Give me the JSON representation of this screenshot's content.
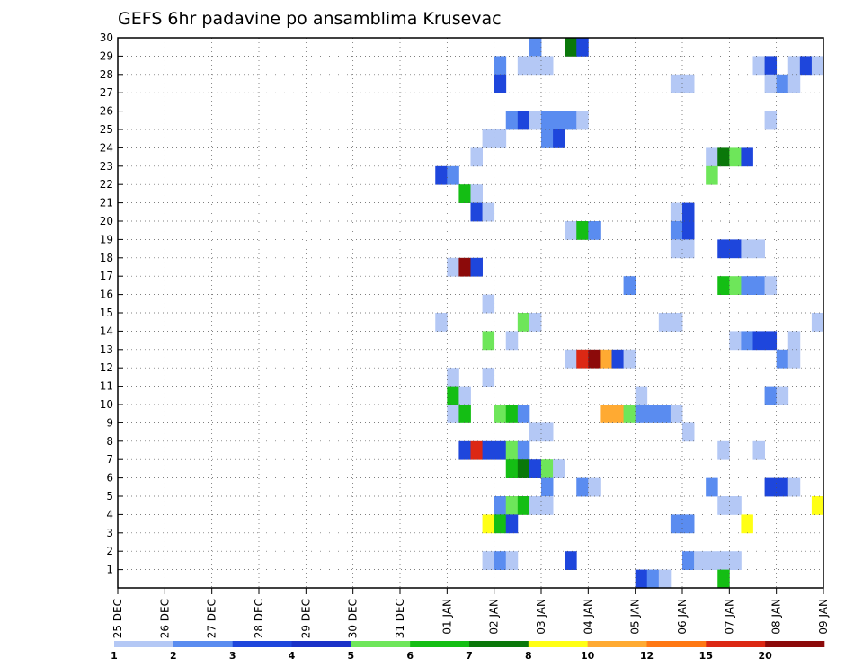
{
  "chart_data": {
    "type": "heatmap",
    "title": "GEFS 6hr padavine po ansamblima Krusevac",
    "xlabel": "",
    "ylabel": "",
    "x_ticks": [
      "25 DEC",
      "26 DEC",
      "27 DEC",
      "28 DEC",
      "29 DEC",
      "30 DEC",
      "31 DEC",
      "01 JAN",
      "02 JAN",
      "03 JAN",
      "04 JAN",
      "05 JAN",
      "06 JAN",
      "07 JAN",
      "08 JAN",
      "09 JAN"
    ],
    "x_range_days": [
      0,
      15
    ],
    "time_step_hours": 6,
    "y_ticks": [
      1,
      2,
      3,
      4,
      5,
      6,
      7,
      8,
      9,
      10,
      11,
      12,
      13,
      14,
      15,
      16,
      17,
      18,
      19,
      20,
      21,
      22,
      23,
      24,
      25,
      26,
      27,
      28,
      29,
      30
    ],
    "y_range": [
      0,
      30
    ],
    "grid": true,
    "legend": {
      "placement": "bottom",
      "labels": [
        "1",
        "2",
        "3",
        "4",
        "5",
        "6",
        "7",
        "8",
        "10",
        "12",
        "15",
        "20"
      ],
      "colors": [
        "#b4c8f5",
        "#5a8cf0",
        "#1e46dc",
        "#1a32c8",
        "#6ee65a",
        "#14be14",
        "#0a780a",
        "#ffff14",
        "#ffaa32",
        "#ff7814",
        "#dc2814",
        "#8c0a0a"
      ]
    },
    "cells": [
      {
        "m": 30,
        "c": [
          [
            35,
            2
          ],
          [
            38,
            7
          ],
          [
            39,
            3
          ]
        ]
      },
      {
        "m": 29,
        "c": [
          [
            32,
            2
          ],
          [
            34,
            1
          ],
          [
            35,
            1
          ],
          [
            36,
            1
          ],
          [
            54,
            1
          ],
          [
            55,
            3
          ],
          [
            57,
            1
          ],
          [
            58,
            3
          ],
          [
            59,
            1
          ]
        ]
      },
      {
        "m": 28,
        "c": [
          [
            32,
            3
          ],
          [
            47,
            1
          ],
          [
            48,
            1
          ],
          [
            55,
            1
          ],
          [
            56,
            2
          ],
          [
            57,
            1
          ]
        ]
      },
      {
        "m": 26,
        "c": [
          [
            33,
            2
          ],
          [
            34,
            3
          ],
          [
            35,
            1
          ],
          [
            36,
            2
          ],
          [
            37,
            2
          ],
          [
            38,
            2
          ],
          [
            39,
            1
          ],
          [
            55,
            1
          ]
        ]
      },
      {
        "m": 25,
        "c": [
          [
            31,
            1
          ],
          [
            32,
            1
          ],
          [
            36,
            2
          ],
          [
            37,
            3
          ]
        ]
      },
      {
        "m": 24,
        "c": [
          [
            30,
            1
          ],
          [
            50,
            1
          ],
          [
            51,
            7
          ],
          [
            52,
            5
          ],
          [
            53,
            3
          ]
        ]
      },
      {
        "m": 23,
        "c": [
          [
            27,
            3
          ],
          [
            28,
            2
          ],
          [
            50,
            5
          ]
        ]
      },
      {
        "m": 22,
        "c": [
          [
            29,
            6
          ],
          [
            30,
            1
          ]
        ]
      },
      {
        "m": 21,
        "c": [
          [
            30,
            3
          ],
          [
            31,
            1
          ],
          [
            47,
            1
          ],
          [
            48,
            3
          ]
        ]
      },
      {
        "m": 20,
        "c": [
          [
            38,
            1
          ],
          [
            39,
            6
          ],
          [
            40,
            2
          ],
          [
            47,
            2
          ],
          [
            48,
            3
          ]
        ]
      },
      {
        "m": 19,
        "c": [
          [
            47,
            1
          ],
          [
            48,
            1
          ],
          [
            51,
            3
          ],
          [
            52,
            3
          ],
          [
            53,
            1
          ],
          [
            54,
            1
          ]
        ]
      },
      {
        "m": 18,
        "c": [
          [
            28,
            1
          ],
          [
            29,
            20
          ],
          [
            30,
            3
          ]
        ]
      },
      {
        "m": 17,
        "c": [
          [
            43,
            2
          ],
          [
            51,
            6
          ],
          [
            52,
            5
          ],
          [
            53,
            2
          ],
          [
            54,
            2
          ],
          [
            55,
            1
          ]
        ]
      },
      {
        "m": 16,
        "c": [
          [
            31,
            1
          ]
        ]
      },
      {
        "m": 15,
        "c": [
          [
            27,
            1
          ],
          [
            34,
            5
          ],
          [
            35,
            1
          ],
          [
            46,
            1
          ],
          [
            47,
            1
          ],
          [
            59,
            1
          ]
        ]
      },
      {
        "m": 14,
        "c": [
          [
            31,
            5
          ],
          [
            33,
            1
          ],
          [
            52,
            1
          ],
          [
            53,
            2
          ],
          [
            54,
            3
          ],
          [
            55,
            3
          ],
          [
            57,
            1
          ]
        ]
      },
      {
        "m": 13,
        "c": [
          [
            38,
            1
          ],
          [
            39,
            15
          ],
          [
            40,
            20
          ],
          [
            41,
            10
          ],
          [
            42,
            3
          ],
          [
            43,
            1
          ],
          [
            56,
            2
          ],
          [
            57,
            1
          ]
        ]
      },
      {
        "m": 12,
        "c": [
          [
            28,
            1
          ],
          [
            31,
            1
          ]
        ]
      },
      {
        "m": 11,
        "c": [
          [
            28,
            6
          ],
          [
            29,
            1
          ],
          [
            44,
            1
          ],
          [
            55,
            2
          ],
          [
            56,
            1
          ]
        ]
      },
      {
        "m": 10,
        "c": [
          [
            28,
            1
          ],
          [
            29,
            6
          ],
          [
            32,
            5
          ],
          [
            33,
            6
          ],
          [
            34,
            2
          ],
          [
            41,
            10
          ],
          [
            42,
            10
          ],
          [
            43,
            5
          ],
          [
            44,
            2
          ],
          [
            45,
            2
          ],
          [
            46,
            2
          ],
          [
            47,
            1
          ]
        ]
      },
      {
        "m": 9,
        "c": [
          [
            35,
            1
          ],
          [
            36,
            1
          ],
          [
            48,
            1
          ]
        ]
      },
      {
        "m": 8,
        "c": [
          [
            29,
            3
          ],
          [
            30,
            15
          ],
          [
            31,
            3
          ],
          [
            32,
            3
          ],
          [
            33,
            5
          ],
          [
            34,
            2
          ],
          [
            51,
            1
          ],
          [
            54,
            1
          ]
        ]
      },
      {
        "m": 7,
        "c": [
          [
            33,
            6
          ],
          [
            34,
            7
          ],
          [
            35,
            3
          ],
          [
            36,
            5
          ],
          [
            37,
            1
          ]
        ]
      },
      {
        "m": 6,
        "c": [
          [
            36,
            2
          ],
          [
            39,
            2
          ],
          [
            40,
            1
          ],
          [
            50,
            2
          ],
          [
            55,
            3
          ],
          [
            56,
            3
          ],
          [
            57,
            1
          ]
        ]
      },
      {
        "m": 5,
        "c": [
          [
            32,
            2
          ],
          [
            33,
            5
          ],
          [
            34,
            6
          ],
          [
            35,
            1
          ],
          [
            36,
            1
          ],
          [
            51,
            1
          ],
          [
            52,
            1
          ],
          [
            59,
            8
          ]
        ]
      },
      {
        "m": 4,
        "c": [
          [
            31,
            8
          ],
          [
            32,
            6
          ],
          [
            33,
            3
          ],
          [
            47,
            2
          ],
          [
            48,
            2
          ],
          [
            53,
            8
          ]
        ]
      },
      {
        "m": 2,
        "c": [
          [
            31,
            1
          ],
          [
            32,
            2
          ],
          [
            33,
            1
          ],
          [
            38,
            3
          ],
          [
            48,
            2
          ],
          [
            49,
            1
          ],
          [
            50,
            1
          ],
          [
            51,
            1
          ],
          [
            52,
            1
          ]
        ]
      },
      {
        "m": 1,
        "c": [
          [
            44,
            3
          ],
          [
            45,
            2
          ],
          [
            46,
            1
          ],
          [
            51,
            6
          ]
        ]
      }
    ]
  }
}
